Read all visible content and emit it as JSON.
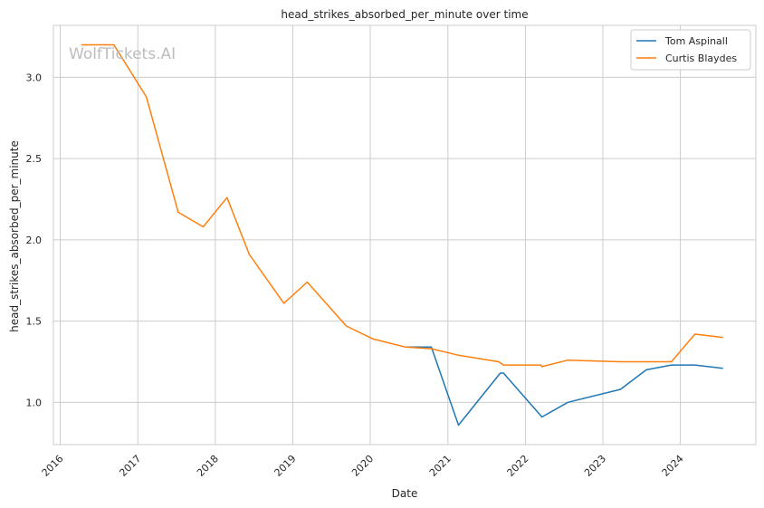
{
  "chart_data": {
    "type": "line",
    "title": "head_strikes_absorbed_per_minute over time",
    "xlabel": "Date",
    "ylabel": "head_strikes_absorbed_per_minute",
    "watermark": "WolfTickets.AI",
    "x_ticks": [
      "2016",
      "2017",
      "2018",
      "2019",
      "2020",
      "2021",
      "2022",
      "2023",
      "2024"
    ],
    "y_ticks": [
      "1.0",
      "1.5",
      "2.0",
      "2.5",
      "3.0"
    ],
    "xlim": [
      "2015-11-30",
      "2024-12-22"
    ],
    "ylim": [
      0.74,
      3.32
    ],
    "grid": true,
    "legend_position": "top-right",
    "series": [
      {
        "name": "Tom Aspinall",
        "color": "#1f77b4",
        "points": [
          [
            "2020-06-15",
            1.34
          ],
          [
            "2020-10-15",
            1.34
          ],
          [
            "2021-02-20",
            0.86
          ],
          [
            "2021-09-05",
            1.18
          ],
          [
            "2021-09-20",
            1.18
          ],
          [
            "2022-03-20",
            0.91
          ],
          [
            "2022-07-20",
            1.0
          ],
          [
            "2023-03-25",
            1.08
          ],
          [
            "2023-07-25",
            1.2
          ],
          [
            "2023-11-20",
            1.23
          ],
          [
            "2024-03-10",
            1.23
          ],
          [
            "2024-07-20",
            1.21
          ]
        ]
      },
      {
        "name": "Curtis Blaydes",
        "color": "#ff7f0e",
        "points": [
          [
            "2016-04-10",
            3.2
          ],
          [
            "2016-09-10",
            3.2
          ],
          [
            "2017-02-10",
            2.88
          ],
          [
            "2017-07-10",
            2.17
          ],
          [
            "2017-11-05",
            2.08
          ],
          [
            "2018-02-25",
            2.26
          ],
          [
            "2018-06-10",
            1.91
          ],
          [
            "2018-11-20",
            1.61
          ],
          [
            "2019-03-10",
            1.74
          ],
          [
            "2019-09-10",
            1.47
          ],
          [
            "2020-01-15",
            1.39
          ],
          [
            "2020-06-15",
            1.34
          ],
          [
            "2020-10-15",
            1.33
          ],
          [
            "2021-02-20",
            1.29
          ],
          [
            "2021-08-28",
            1.25
          ],
          [
            "2021-09-20",
            1.23
          ],
          [
            "2022-03-15",
            1.23
          ],
          [
            "2022-03-20",
            1.22
          ],
          [
            "2022-07-20",
            1.26
          ],
          [
            "2023-03-25",
            1.25
          ],
          [
            "2023-11-20",
            1.25
          ],
          [
            "2024-03-10",
            1.42
          ],
          [
            "2024-07-20",
            1.4
          ]
        ]
      }
    ]
  }
}
